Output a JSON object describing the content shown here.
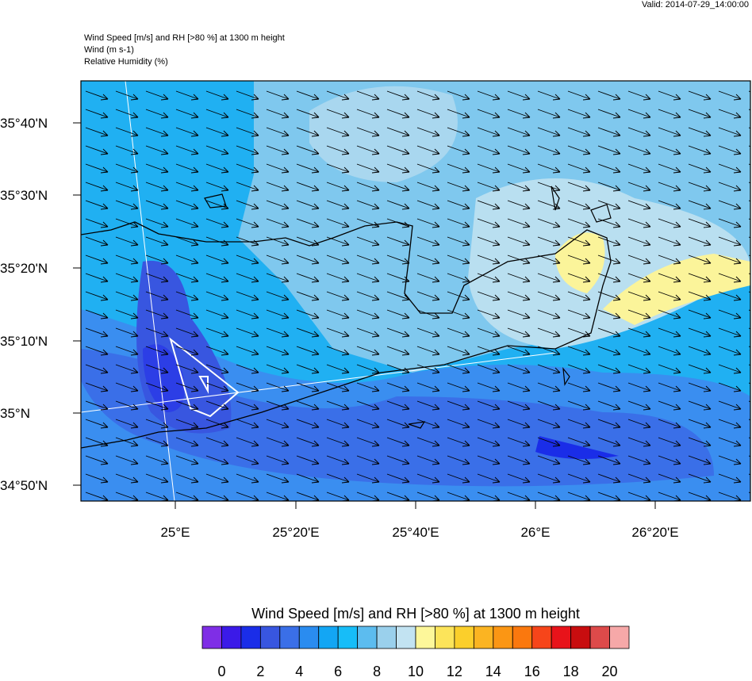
{
  "valid": "Valid: 2014-07-29_14:00:00",
  "titles": [
    "Wind Speed [m/s] and RH [>80 %] at 1300 m height",
    "Wind   (m s-1)",
    "Relative Humidity   (%)"
  ],
  "map": {
    "lat_labels": [
      "35°40'N",
      "35°30'N",
      "35°20'N",
      "35°10'N",
      "35°N",
      "34°50'N"
    ],
    "lon_labels": [
      "25°E",
      "25°20'E",
      "25°40'E",
      "26°E",
      "26°20'E"
    ]
  },
  "colorbar": {
    "title": "Wind Speed [m/s] and RH [>80 %] at 1300 m height",
    "colors": [
      "#7f2ee6",
      "#3b1ae8",
      "#1a2de8",
      "#3856e0",
      "#3a6fe8",
      "#2a8cf0",
      "#13a6f4",
      "#17bdf8",
      "#5cbcef",
      "#9ad0ec",
      "#c2e3f2",
      "#fdf79a",
      "#fce45a",
      "#fbcf2b",
      "#fbb422",
      "#fb9614",
      "#fa780e",
      "#f6451a",
      "#e8131a",
      "#c80d0f",
      "#dd4a4a",
      "#f6a8a8"
    ],
    "labels": [
      0,
      2,
      4,
      6,
      8,
      10,
      12,
      14,
      16,
      18,
      20
    ]
  }
}
